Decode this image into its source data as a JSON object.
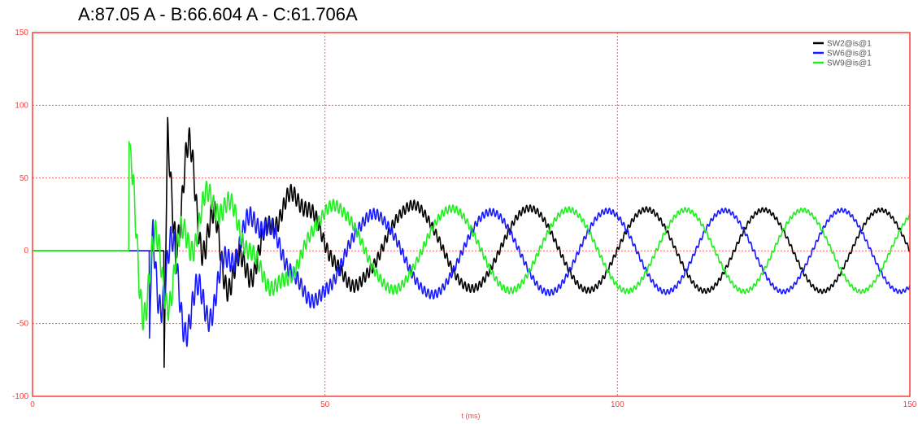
{
  "chart_data": {
    "type": "line",
    "title": "A:87.05 A - B:66.604 A - C:61.706A",
    "xlabel": "t (ms)",
    "ylabel": "",
    "xlim": [
      0,
      150
    ],
    "ylim": [
      -100,
      150
    ],
    "x_ticks": [
      0,
      50,
      100,
      150
    ],
    "y_ticks": [
      -100,
      -50,
      0,
      50,
      100,
      150
    ],
    "grid": true,
    "legend_position": "top-right",
    "colors": {
      "axis": "#ff3b3b",
      "grid": "#ff5a5a"
    },
    "series": [
      {
        "name": "SW2@is@1",
        "color": "#000000",
        "phase_deg": 0,
        "onset_ms": 22.5,
        "points": [
          [
            0,
            0
          ],
          [
            22,
            0
          ],
          [
            22.8,
            -85
          ],
          [
            23.5,
            90
          ],
          [
            25,
            -70
          ],
          [
            26,
            60
          ],
          [
            28,
            -55
          ],
          [
            30,
            40
          ],
          [
            32,
            -58
          ],
          [
            35,
            25
          ],
          [
            38,
            -38
          ],
          [
            41,
            42
          ],
          [
            43.5,
            50
          ],
          [
            46,
            -10
          ],
          [
            48,
            -40
          ],
          [
            50,
            -10
          ],
          [
            53,
            38
          ],
          [
            57,
            -35
          ],
          [
            60,
            -10
          ],
          [
            63,
            38
          ],
          [
            67,
            -25
          ],
          [
            70,
            5
          ],
          [
            73,
            22
          ],
          [
            76,
            -10
          ],
          [
            78,
            -30
          ],
          [
            83,
            32
          ],
          [
            88,
            -30
          ],
          [
            93,
            30
          ],
          [
            98,
            -28
          ],
          [
            103,
            30
          ],
          [
            108,
            -28
          ],
          [
            113,
            30
          ],
          [
            118,
            -28
          ],
          [
            123,
            30
          ],
          [
            128,
            -28
          ],
          [
            133,
            30
          ],
          [
            138,
            -28
          ],
          [
            143,
            30
          ],
          [
            148,
            -5
          ],
          [
            150,
            -13
          ]
        ]
      },
      {
        "name": "SW6@is@1",
        "color": "#1a1aff",
        "phase_deg": 120,
        "onset_ms": 20,
        "points": [
          [
            0,
            0
          ],
          [
            20,
            0
          ],
          [
            20.5,
            -65
          ],
          [
            21.5,
            20
          ],
          [
            23,
            -40
          ],
          [
            25,
            55
          ],
          [
            27,
            -30
          ],
          [
            29,
            75
          ],
          [
            31,
            -35
          ],
          [
            34,
            30
          ],
          [
            37,
            -25
          ],
          [
            40,
            35
          ],
          [
            44,
            -5
          ],
          [
            47,
            40
          ],
          [
            50,
            25
          ],
          [
            53,
            -10
          ],
          [
            56,
            -30
          ],
          [
            60,
            -10
          ],
          [
            64,
            20
          ],
          [
            70,
            35
          ],
          [
            75,
            -20
          ],
          [
            80,
            -28
          ],
          [
            86,
            28
          ],
          [
            91,
            -28
          ],
          [
            96,
            20
          ],
          [
            101,
            -28
          ],
          [
            106,
            30
          ],
          [
            111,
            -28
          ],
          [
            116,
            25
          ],
          [
            121,
            -28
          ],
          [
            126,
            30
          ],
          [
            131,
            -28
          ],
          [
            136,
            25
          ],
          [
            141,
            -28
          ],
          [
            146,
            30
          ],
          [
            150,
            28
          ]
        ]
      },
      {
        "name": "SW9@is@1",
        "color": "#22ee22",
        "phase_deg": -120,
        "onset_ms": 16.5,
        "points": [
          [
            0,
            0
          ],
          [
            16.5,
            0
          ],
          [
            17,
            78
          ],
          [
            18,
            30
          ],
          [
            20,
            -45
          ],
          [
            22,
            30
          ],
          [
            24,
            -55
          ],
          [
            27,
            -20
          ],
          [
            30,
            50
          ],
          [
            33,
            -30
          ],
          [
            36,
            40
          ],
          [
            39,
            -10
          ],
          [
            42,
            -30
          ],
          [
            45,
            -45
          ],
          [
            48,
            20
          ],
          [
            51,
            -10
          ],
          [
            55,
            35
          ],
          [
            58,
            -30
          ],
          [
            62,
            -10
          ],
          [
            65,
            25
          ],
          [
            68,
            -15
          ],
          [
            72,
            -30
          ],
          [
            76,
            5
          ],
          [
            80,
            28
          ],
          [
            85,
            -30
          ],
          [
            90,
            20
          ],
          [
            95,
            30
          ],
          [
            100,
            -30
          ],
          [
            105,
            20
          ],
          [
            110,
            30
          ],
          [
            115,
            -30
          ],
          [
            120,
            20
          ],
          [
            125,
            30
          ],
          [
            130,
            -30
          ],
          [
            135,
            20
          ],
          [
            140,
            30
          ],
          [
            145,
            -20
          ],
          [
            150,
            -15
          ]
        ]
      }
    ]
  }
}
